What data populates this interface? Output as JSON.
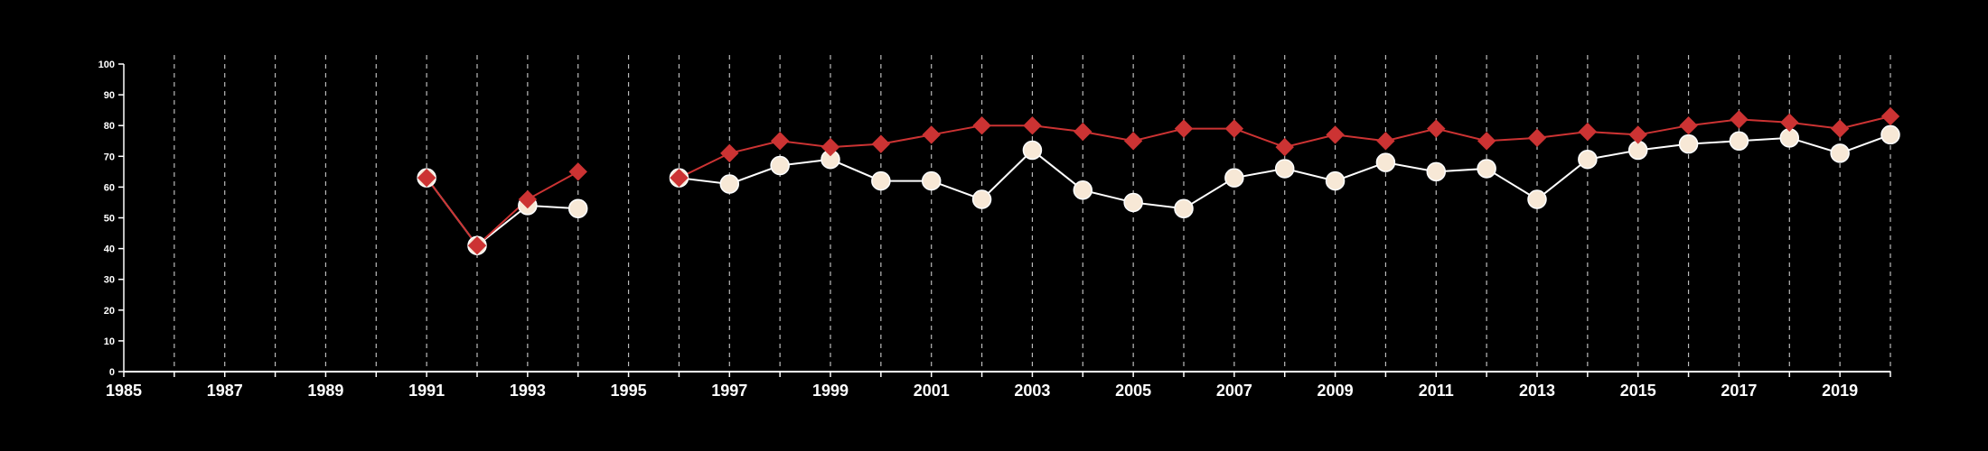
{
  "colors": {
    "background": "#000000",
    "axis": "#ffffff",
    "grid": "#bbbbbb",
    "series_red": "#cc3333",
    "series_white_fill": "#f7e8d6",
    "series_white_line": "#ffffff"
  },
  "chart_data": {
    "type": "line",
    "title": "",
    "xlabel": "",
    "ylabel": "",
    "xlim": [
      1985,
      2020
    ],
    "ylim": [
      0,
      100
    ],
    "y_ticks": [
      0,
      10,
      20,
      30,
      40,
      50,
      60,
      70,
      80,
      90,
      100
    ],
    "x_ticks": [
      1985,
      1986,
      1987,
      1988,
      1989,
      1990,
      1991,
      1992,
      1993,
      1994,
      1995,
      1996,
      1997,
      1998,
      1999,
      2000,
      2001,
      2002,
      2003,
      2004,
      2005,
      2006,
      2007,
      2008,
      2009,
      2010,
      2011,
      2012,
      2013,
      2014,
      2015,
      2016,
      2017,
      2018,
      2019,
      2020
    ],
    "x_tick_labels": [
      "1985",
      "1987",
      "1989",
      "1991",
      "1993",
      "1995",
      "1997",
      "1999",
      "2001",
      "2003",
      "2005",
      "2007",
      "2009",
      "2011",
      "2013",
      "2015",
      "2017",
      "2019"
    ],
    "grid": "vertical dashed",
    "legend": "none",
    "series": [
      {
        "marker": "circle",
        "color": "#f7e8d6",
        "segments": [
          {
            "x": [
              1991,
              1992,
              1993,
              1994
            ],
            "y": [
              63,
              41,
              54,
              53
            ]
          },
          {
            "x": [
              1996,
              1997,
              1998,
              1999,
              2000,
              2001,
              2002,
              2003,
              2004,
              2005,
              2006,
              2007,
              2008,
              2009,
              2010,
              2011,
              2012,
              2013,
              2014,
              2015,
              2016,
              2017,
              2018,
              2019,
              2020
            ],
            "y": [
              63,
              61,
              67,
              69,
              62,
              62,
              56,
              72,
              59,
              55,
              53,
              63,
              66,
              62,
              68,
              65,
              66,
              56,
              69,
              72,
              74,
              75,
              76,
              71,
              77
            ]
          }
        ]
      },
      {
        "marker": "diamond",
        "color": "#cc3333",
        "segments": [
          {
            "x": [
              1991,
              1992,
              1993,
              1994
            ],
            "y": [
              63,
              41,
              56,
              65
            ]
          },
          {
            "x": [
              1996,
              1997,
              1998,
              1999,
              2000,
              2001,
              2002,
              2003,
              2004,
              2005,
              2006,
              2007,
              2008,
              2009,
              2010,
              2011,
              2012,
              2013,
              2014,
              2015,
              2016,
              2017,
              2018,
              2019,
              2020
            ],
            "y": [
              63,
              71,
              75,
              73,
              74,
              77,
              80,
              80,
              78,
              75,
              79,
              79,
              73,
              77,
              75,
              79,
              75,
              76,
              78,
              77,
              80,
              82,
              81,
              79,
              83
            ]
          }
        ]
      }
    ]
  }
}
